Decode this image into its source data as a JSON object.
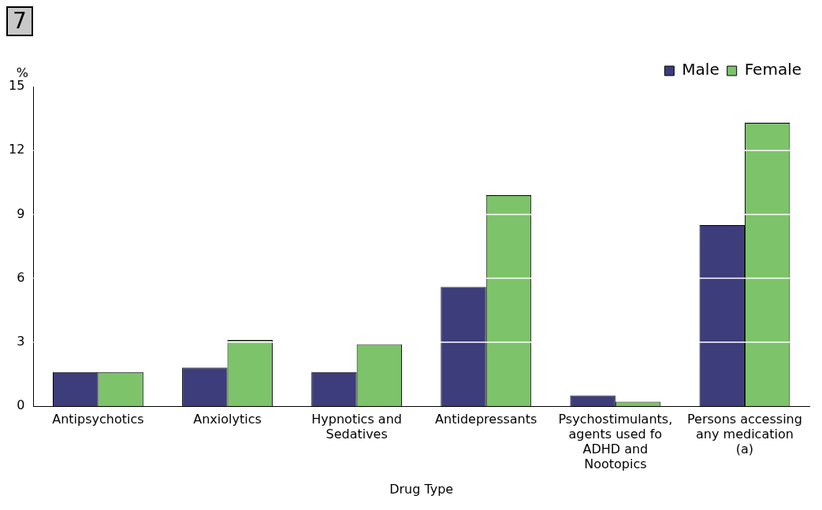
{
  "chart_data": {
    "type": "bar",
    "title": "7",
    "ylabel": "%",
    "xlabel": "Drug Type",
    "categories": [
      "Antipsychotics",
      "Anxiolytics",
      "Hypnotics and Sedatives",
      "Antidepressants",
      "Psychostimulants, agents used fo ADHD and Nootopics",
      "Persons accessing any medication (a)"
    ],
    "series": [
      {
        "name": "Male",
        "color": "#3d3d7c",
        "values": [
          1.6,
          1.8,
          1.6,
          5.6,
          0.5,
          8.5
        ]
      },
      {
        "name": "Female",
        "color": "#7dc36a",
        "values": [
          1.6,
          3.1,
          2.9,
          9.9,
          0.2,
          13.3
        ]
      }
    ],
    "ylim": [
      0,
      15
    ],
    "yticks": [
      0,
      3,
      6,
      9,
      12,
      15
    ],
    "grid": "y",
    "legend": "top right"
  }
}
